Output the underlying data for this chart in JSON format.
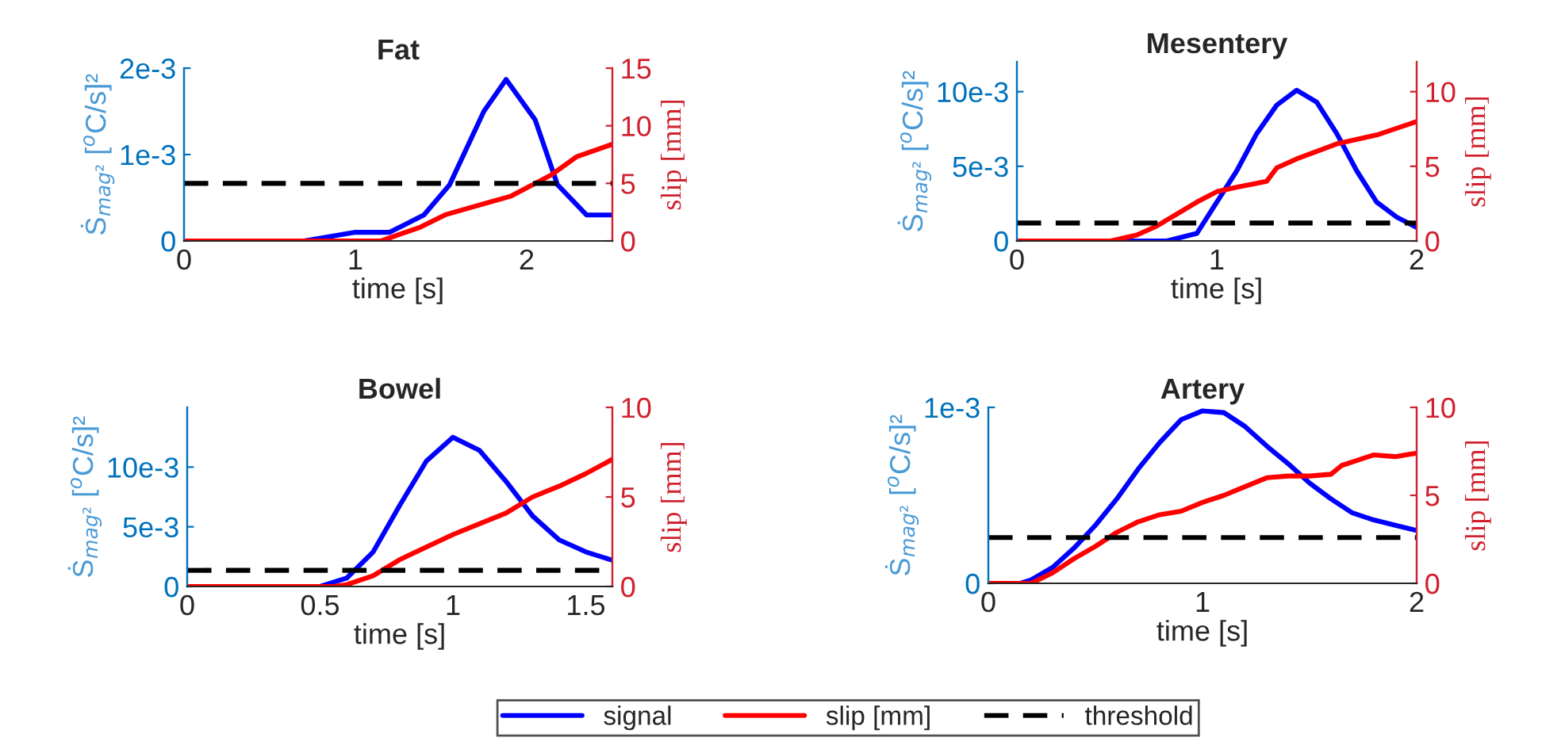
{
  "chart_data": [
    {
      "type": "line",
      "title": "Fat",
      "xlabel": "time [s]",
      "ylabel": "Ṡ$_{mag²}$ [$^{o}$C/s]²",
      "y2label": "slip [mm]",
      "xlim": [
        0,
        2.5
      ],
      "xticks": [
        0,
        1,
        2
      ],
      "ylim": [
        0,
        0.002
      ],
      "yticks": [
        0,
        {
          "value": 0.001,
          "label": "1e-3"
        },
        {
          "value": 0.002,
          "label": "2e-3"
        }
      ],
      "y2lim": [
        0,
        15
      ],
      "y2ticks": [
        0,
        5,
        10,
        15
      ],
      "legend": "bottom",
      "series": [
        {
          "name": "signal",
          "color": "#0000ff",
          "x": [
            0,
            0.7,
            1.0,
            1.2,
            1.4,
            1.55,
            1.75,
            1.88,
            2.05,
            2.18,
            2.35,
            2.5
          ],
          "values": [
            0,
            0,
            0.0001,
            0.0001,
            0.0003,
            0.00065,
            0.0015,
            0.00187,
            0.0014,
            0.00065,
            0.0003,
            0.0003
          ]
        },
        {
          "name": "slip [mm]",
          "color": "#ff0000",
          "axis": "y2",
          "x": [
            0,
            1.15,
            1.38,
            1.53,
            1.91,
            2.14,
            2.29,
            2.5
          ],
          "values": [
            0,
            0,
            1.2,
            2.3,
            3.9,
            5.7,
            7.3,
            8.4
          ]
        }
      ],
      "ref_lines": [
        {
          "axis": "y2",
          "value": 5,
          "label": "threshold",
          "color": "#000000",
          "line_style": "dashed"
        }
      ]
    },
    {
      "type": "line",
      "title": "Mesentery",
      "xlabel": "time [s]",
      "ylabel": "Ṡ$_{mag²}$ [$^{o}$C/s]²",
      "y2label": "slip [mm]",
      "xlim": [
        0,
        2
      ],
      "xticks": [
        0,
        1,
        2
      ],
      "ylim": [
        0,
        0.012
      ],
      "yticks": [
        0,
        {
          "value": 0.005,
          "label": "5e-3"
        },
        {
          "value": 0.01,
          "label": "10e-3"
        }
      ],
      "y2lim": [
        0,
        12
      ],
      "y2ticks": [
        0,
        5,
        10
      ],
      "series": [
        {
          "color": "#0000ff",
          "x": [
            0,
            0.75,
            0.9,
            1.0,
            1.1,
            1.2,
            1.3,
            1.4,
            1.5,
            1.6,
            1.7,
            1.8,
            1.9,
            2.0
          ],
          "values": [
            0,
            0,
            0.0005,
            0.0026,
            0.0047,
            0.0072,
            0.0091,
            0.0101,
            0.0093,
            0.0072,
            0.0047,
            0.0026,
            0.0016,
            0.0009
          ]
        },
        {
          "color": "#ff0000",
          "axis": "y2",
          "x": [
            0,
            0.47,
            0.6,
            0.7,
            0.8,
            0.9,
            1.0,
            1.1,
            1.25,
            1.3,
            1.4,
            1.6,
            1.8,
            2.0
          ],
          "values": [
            0,
            0,
            0.4,
            1.0,
            1.8,
            2.6,
            3.3,
            3.6,
            4.0,
            4.9,
            5.5,
            6.5,
            7.1,
            8.0
          ]
        }
      ],
      "ref_lines": [
        {
          "axis": "y2",
          "value": 1.2,
          "color": "#000000",
          "line_style": "dashed"
        }
      ]
    },
    {
      "type": "line",
      "title": "Bowel",
      "xlabel": "time [s]",
      "ylabel": "Ṡ$_{mag²}$ [$^{o}$C/s]²",
      "y2label": "slip [mm]",
      "xlim": [
        0,
        1.6
      ],
      "xticks": [
        0,
        0.5,
        1,
        1.5
      ],
      "ylim": [
        0,
        0.015
      ],
      "yticks": [
        0,
        {
          "value": 0.005,
          "label": "5e-3"
        },
        {
          "value": 0.01,
          "label": "10e-3"
        }
      ],
      "y2lim": [
        0,
        10
      ],
      "y2ticks": [
        0,
        5,
        10
      ],
      "series": [
        {
          "color": "#0000ff",
          "x": [
            0,
            0.5,
            0.6,
            0.7,
            0.8,
            0.9,
            1.0,
            1.1,
            1.2,
            1.3,
            1.4,
            1.5,
            1.6
          ],
          "values": [
            0,
            0,
            0.0007,
            0.0029,
            0.0068,
            0.0105,
            0.0125,
            0.0114,
            0.0088,
            0.0059,
            0.0039,
            0.0029,
            0.0022
          ]
        },
        {
          "color": "#ff0000",
          "axis": "y2",
          "x": [
            0,
            0.55,
            0.6,
            0.7,
            0.8,
            0.9,
            1.0,
            1.1,
            1.2,
            1.3,
            1.4,
            1.5,
            1.6
          ],
          "values": [
            0,
            0,
            0.1,
            0.6,
            1.5,
            2.2,
            2.9,
            3.5,
            4.1,
            5.0,
            5.6,
            6.3,
            7.1
          ]
        }
      ],
      "ref_lines": [
        {
          "axis": "y2",
          "value": 0.9,
          "color": "#000000",
          "line_style": "dashed"
        }
      ]
    },
    {
      "type": "line",
      "title": "Artery",
      "xlabel": "time [s]",
      "ylabel": "Ṡ$_{mag²}$ [$^{o}$C/s]²",
      "y2label": "slip [mm]",
      "xlim": [
        0,
        2
      ],
      "xticks": [
        0,
        1,
        2
      ],
      "ylim": [
        0,
        0.001
      ],
      "yticks": [
        0,
        {
          "value": 0.001,
          "label": "1e-3"
        }
      ],
      "y2lim": [
        0,
        10
      ],
      "y2ticks": [
        0,
        5,
        10
      ],
      "series": [
        {
          "color": "#0000ff",
          "x": [
            0,
            0.15,
            0.2,
            0.3,
            0.4,
            0.5,
            0.6,
            0.7,
            0.8,
            0.9,
            1.0,
            1.1,
            1.2,
            1.3,
            1.4,
            1.5,
            1.6,
            1.7,
            1.8,
            1.9,
            2.0
          ],
          "values": [
            0,
            0,
            2e-05,
            9e-05,
            0.0002,
            0.00033,
            0.00048,
            0.00065,
            0.0008,
            0.00093,
            0.00098,
            0.00097,
            0.00089,
            0.00078,
            0.00068,
            0.00057,
            0.00048,
            0.0004,
            0.00036,
            0.00033,
            0.0003
          ]
        },
        {
          "color": "#ff0000",
          "axis": "y2",
          "x": [
            0,
            0.2,
            0.3,
            0.4,
            0.5,
            0.6,
            0.7,
            0.8,
            0.9,
            1.0,
            1.1,
            1.2,
            1.3,
            1.4,
            1.5,
            1.6,
            1.65,
            1.7,
            1.8,
            1.9,
            2.0
          ],
          "values": [
            0,
            0,
            0.6,
            1.4,
            2.1,
            2.9,
            3.5,
            3.9,
            4.1,
            4.6,
            5.0,
            5.5,
            6.0,
            6.1,
            6.1,
            6.2,
            6.7,
            6.9,
            7.3,
            7.2,
            7.4
          ]
        }
      ],
      "ref_lines": [
        {
          "axis": "y2",
          "value": 2.6,
          "color": "#000000",
          "line_style": "dashed"
        }
      ]
    }
  ]
}
